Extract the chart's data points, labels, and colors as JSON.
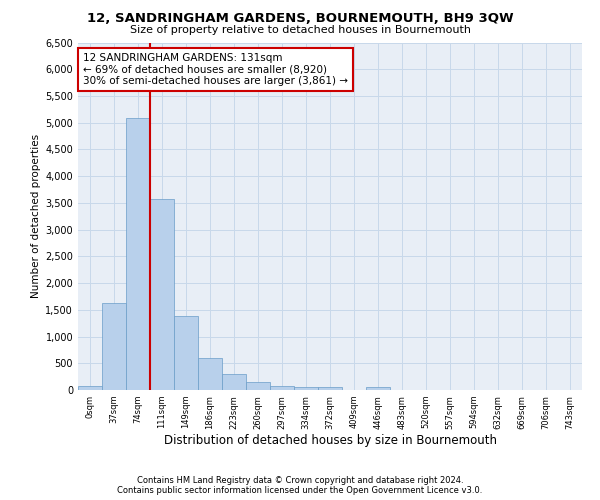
{
  "title_line1": "12, SANDRINGHAM GARDENS, BOURNEMOUTH, BH9 3QW",
  "title_line2": "Size of property relative to detached houses in Bournemouth",
  "xlabel": "Distribution of detached houses by size in Bournemouth",
  "ylabel": "Number of detached properties",
  "footnote1": "Contains HM Land Registry data © Crown copyright and database right 2024.",
  "footnote2": "Contains public sector information licensed under the Open Government Licence v3.0.",
  "bar_labels": [
    "0sqm",
    "37sqm",
    "74sqm",
    "111sqm",
    "149sqm",
    "186sqm",
    "223sqm",
    "260sqm",
    "297sqm",
    "334sqm",
    "372sqm",
    "409sqm",
    "446sqm",
    "483sqm",
    "520sqm",
    "557sqm",
    "594sqm",
    "632sqm",
    "669sqm",
    "706sqm",
    "743sqm"
  ],
  "bar_values": [
    70,
    1620,
    5080,
    3570,
    1390,
    590,
    300,
    145,
    80,
    55,
    60,
    0,
    60,
    0,
    0,
    0,
    0,
    0,
    0,
    0,
    0
  ],
  "bar_color": "#b8d0eb",
  "bar_edge_color": "#6a9dc8",
  "vline_color": "#cc0000",
  "vline_x_idx": 2.5,
  "ylim_max": 6500,
  "yticks": [
    0,
    500,
    1000,
    1500,
    2000,
    2500,
    3000,
    3500,
    4000,
    4500,
    5000,
    5500,
    6000,
    6500
  ],
  "annotation_text": "12 SANDRINGHAM GARDENS: 131sqm\n← 69% of detached houses are smaller (8,920)\n30% of semi-detached houses are larger (3,861) →",
  "grid_color": "#c8d8ea",
  "bg_color": "#e8eef6",
  "title1_fontsize": 9.5,
  "title2_fontsize": 8,
  "xlabel_fontsize": 8.5,
  "ylabel_fontsize": 7.5,
  "xtick_fontsize": 6,
  "ytick_fontsize": 7,
  "annot_fontsize": 7.5,
  "footnote_fontsize": 6
}
